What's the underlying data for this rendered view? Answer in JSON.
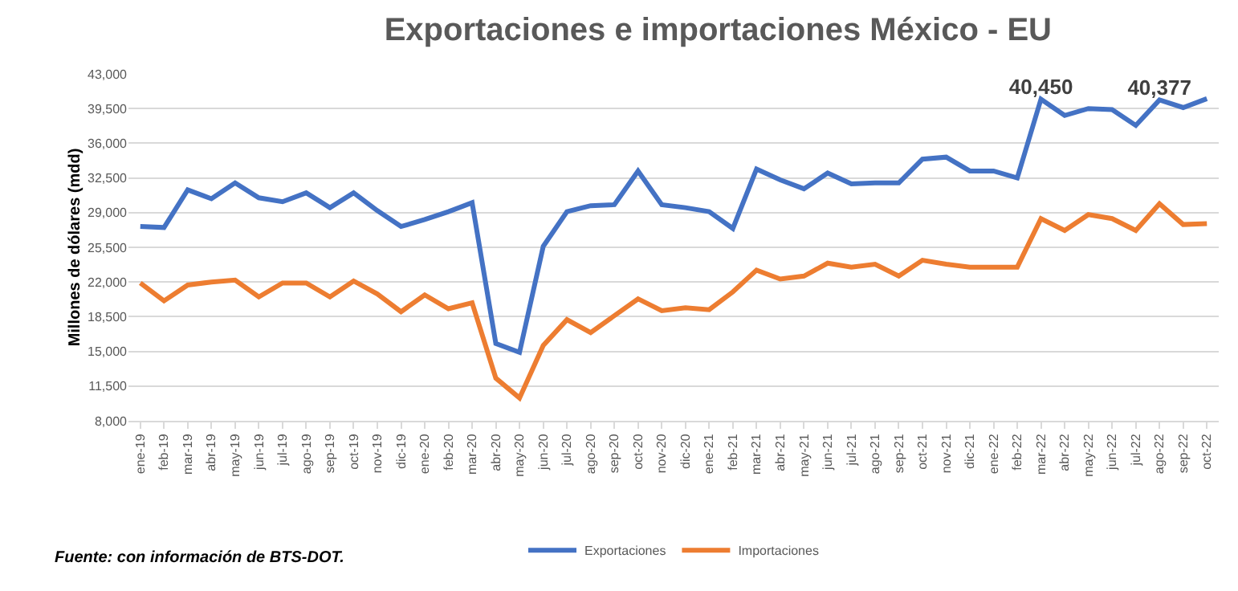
{
  "chart_data": {
    "type": "line",
    "title": "Exportaciones e importaciones México - EU",
    "ylabel": "Millones de dólares (mdd)",
    "categories": [
      "ene-19",
      "feb-19",
      "mar-19",
      "abr-19",
      "may-19",
      "jun-19",
      "jul-19",
      "ago-19",
      "sep-19",
      "oct-19",
      "nov-19",
      "dic-19",
      "ene-20",
      "feb-20",
      "mar-20",
      "abr-20",
      "may-20",
      "jun-20",
      "jul-20",
      "ago-20",
      "sep-20",
      "oct-20",
      "nov-20",
      "dic-20",
      "ene-21",
      "feb-21",
      "mar-21",
      "abr-21",
      "may-21",
      "jun-21",
      "jul-21",
      "ago-21",
      "sep-21",
      "oct-21",
      "nov-21",
      "dic-21",
      "ene-22",
      "feb-22",
      "mar-22",
      "abr-22",
      "may-22",
      "jun-22",
      "jul-22",
      "ago-22",
      "sep-22",
      "oct-22"
    ],
    "series": [
      {
        "name": "Exportaciones",
        "color": "#4472c4",
        "values": [
          27600,
          27500,
          31300,
          30400,
          32000,
          30500,
          30100,
          31000,
          29500,
          31000,
          29200,
          27600,
          28300,
          29100,
          30000,
          15800,
          14900,
          25600,
          29100,
          29700,
          29800,
          33200,
          29800,
          29500,
          29100,
          27400,
          33400,
          32300,
          31400,
          33000,
          31900,
          32000,
          32000,
          34400,
          34600,
          33200,
          33200,
          32500,
          40450,
          38800,
          39500,
          39400,
          37800,
          40377,
          39600,
          40500
        ],
        "value_labels": [
          null,
          null,
          null,
          null,
          null,
          null,
          null,
          null,
          null,
          null,
          null,
          null,
          null,
          null,
          null,
          null,
          null,
          null,
          null,
          null,
          null,
          null,
          null,
          null,
          null,
          null,
          null,
          null,
          null,
          null,
          null,
          null,
          null,
          null,
          null,
          null,
          null,
          null,
          "40,450",
          null,
          null,
          null,
          null,
          "40,377",
          null,
          null
        ]
      },
      {
        "name": "Importaciones",
        "color": "#ed7d31",
        "values": [
          21900,
          20100,
          21700,
          22000,
          22200,
          20500,
          21900,
          21900,
          20500,
          22100,
          20800,
          19000,
          20700,
          19300,
          19900,
          12300,
          10300,
          15600,
          18200,
          16900,
          18600,
          20300,
          19100,
          19400,
          19200,
          21000,
          23200,
          22300,
          22600,
          23900,
          23500,
          23800,
          22600,
          24200,
          23800,
          23500,
          23500,
          23500,
          28400,
          27200,
          28800,
          28400,
          27200,
          29900,
          27800,
          27900
        ]
      }
    ],
    "ylim": [
      8000,
      43000
    ],
    "yticks": [
      {
        "value": 8000,
        "label": "8,000"
      },
      {
        "value": 11500,
        "label": "11,500"
      },
      {
        "value": 15000,
        "label": "15,000"
      },
      {
        "value": 18500,
        "label": "18,500"
      },
      {
        "value": 22000,
        "label": "22,000"
      },
      {
        "value": 25500,
        "label": "25,500"
      },
      {
        "value": 29000,
        "label": "29,000"
      },
      {
        "value": 32500,
        "label": "32,500"
      },
      {
        "value": 36000,
        "label": "36,000"
      },
      {
        "value": 39500,
        "label": "39,500"
      },
      {
        "value": 43000,
        "label": "43,000"
      }
    ],
    "grid": "y",
    "legend": "bottom",
    "marker": "none",
    "line_style": "solid",
    "annotations": [
      "Fuente: con información de BTS-DOT."
    ]
  }
}
